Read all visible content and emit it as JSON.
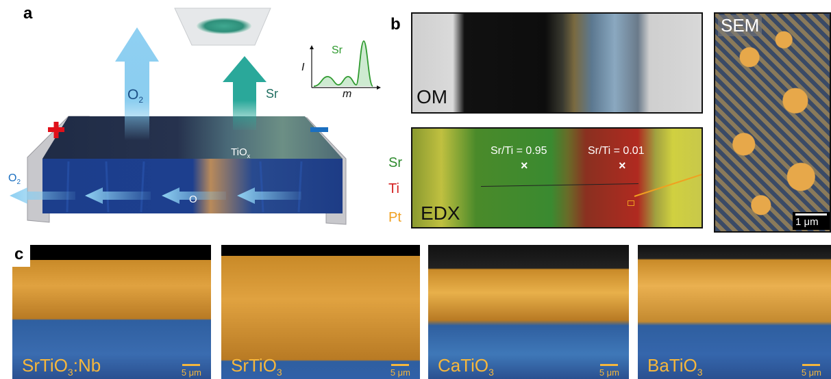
{
  "panels": {
    "a": {
      "letter": "a",
      "o2_top": "O",
      "o2_top_sub": "2",
      "sr_arrow": "Sr",
      "tiox": "TiO",
      "tiox_sub": "x",
      "o_label": "O",
      "o2_left": "O",
      "o2_left_sub": "2",
      "plus": "+",
      "minus": "–",
      "inset": {
        "series": "Sr",
        "ylabel": "I",
        "xlabel": "m"
      }
    },
    "b": {
      "letter": "b",
      "om_label": "OM",
      "edx_label": "EDX",
      "sem_label": "SEM",
      "ratio_left": "Sr/Ti = 0.95",
      "ratio_right": "Sr/Ti = 0.01",
      "marker": "×",
      "legend": [
        "Sr",
        "Ti",
        "Pt"
      ],
      "legend_colors": [
        "#2e8b2e",
        "#d32020",
        "#f0a020"
      ],
      "scale": "1 μm"
    },
    "c": {
      "letter": "c",
      "images": [
        {
          "name": "SrTiO",
          "sub": "3",
          "suffix": ":Nb",
          "scale": "5 μm"
        },
        {
          "name": "SrTiO",
          "sub": "3",
          "suffix": "",
          "scale": "5 μm"
        },
        {
          "name": "CaTiO",
          "sub": "3",
          "suffix": "",
          "scale": "5 μm"
        },
        {
          "name": "BaTiO",
          "sub": "3",
          "suffix": "",
          "scale": "5 μm"
        }
      ]
    }
  },
  "colors": {
    "o2_arrow": "#7fc8ee",
    "sr_arrow": "#2aa89a",
    "plus": "#e0101a",
    "minus": "#1b6fc0",
    "sem_orange": "#f6b73c",
    "sem_blue": "#2f5fa0"
  }
}
